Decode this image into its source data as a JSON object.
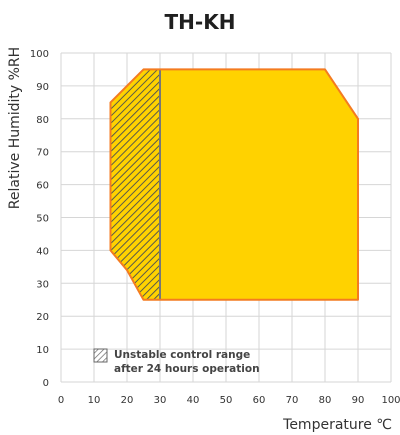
{
  "chart_data": {
    "type": "area",
    "title": "TH-KH",
    "xlabel": "Temperature ℃",
    "ylabel": "Relative Humidity %RH",
    "xlim": [
      0,
      100
    ],
    "ylim": [
      0,
      100
    ],
    "x_ticks": [
      "0",
      "10",
      "20",
      "30",
      "40",
      "50",
      "60",
      "70",
      "80",
      "90",
      "100"
    ],
    "y_ticks": [
      "0",
      "10",
      "20",
      "30",
      "40",
      "50",
      "60",
      "70",
      "80",
      "90",
      "100"
    ],
    "grid": true,
    "regions": [
      {
        "kind": "operating-range",
        "points": [
          [
            15,
            85
          ],
          [
            25,
            95
          ],
          [
            80,
            95
          ],
          [
            90,
            80
          ],
          [
            90,
            25
          ],
          [
            25,
            25
          ],
          [
            20,
            34
          ],
          [
            15,
            40
          ]
        ]
      },
      {
        "kind": "unstable-range",
        "points": [
          [
            15,
            85
          ],
          [
            25,
            95
          ],
          [
            30,
            95
          ],
          [
            30,
            25
          ],
          [
            25,
            25
          ],
          [
            20,
            34
          ],
          [
            15,
            40
          ]
        ]
      }
    ],
    "legend": [
      {
        "label_line1": "Unstable control range",
        "label_line2": "after 24 hours operation",
        "placement": "bottom-left"
      }
    ],
    "colors": {
      "fill": "#FFD200",
      "outline": "#F47B20",
      "hatch": "#5a5a4a",
      "divider": "#777777",
      "grid": "#d6d6d6",
      "legend_hatch": "#666666"
    }
  }
}
